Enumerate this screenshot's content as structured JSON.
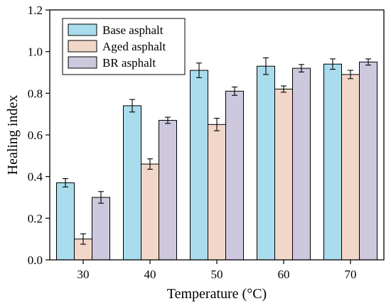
{
  "chart_data": {
    "type": "bar",
    "categories": [
      "30",
      "40",
      "50",
      "60",
      "70"
    ],
    "series": [
      {
        "name": "Base asphalt",
        "color": "#a9dcec",
        "values": [
          0.37,
          0.74,
          0.91,
          0.93,
          0.94
        ],
        "errors": [
          0.02,
          0.03,
          0.035,
          0.04,
          0.025
        ]
      },
      {
        "name": "Aged asphalt",
        "color": "#f2d7c8",
        "values": [
          0.1,
          0.46,
          0.65,
          0.82,
          0.89
        ],
        "errors": [
          0.025,
          0.025,
          0.03,
          0.015,
          0.02
        ]
      },
      {
        "name": "BR asphalt",
        "color": "#cdc8dd",
        "values": [
          0.3,
          0.67,
          0.81,
          0.92,
          0.95
        ],
        "errors": [
          0.028,
          0.015,
          0.02,
          0.018,
          0.015
        ]
      }
    ],
    "xlabel": "Temperature (°C)",
    "ylabel": "Healing index",
    "ylim": [
      0.0,
      1.2
    ],
    "yticks": [
      "0.0",
      "0.2",
      "0.4",
      "0.6",
      "0.8",
      "1.0",
      "1.2"
    ],
    "grid": false,
    "legend_position": "top-left"
  }
}
